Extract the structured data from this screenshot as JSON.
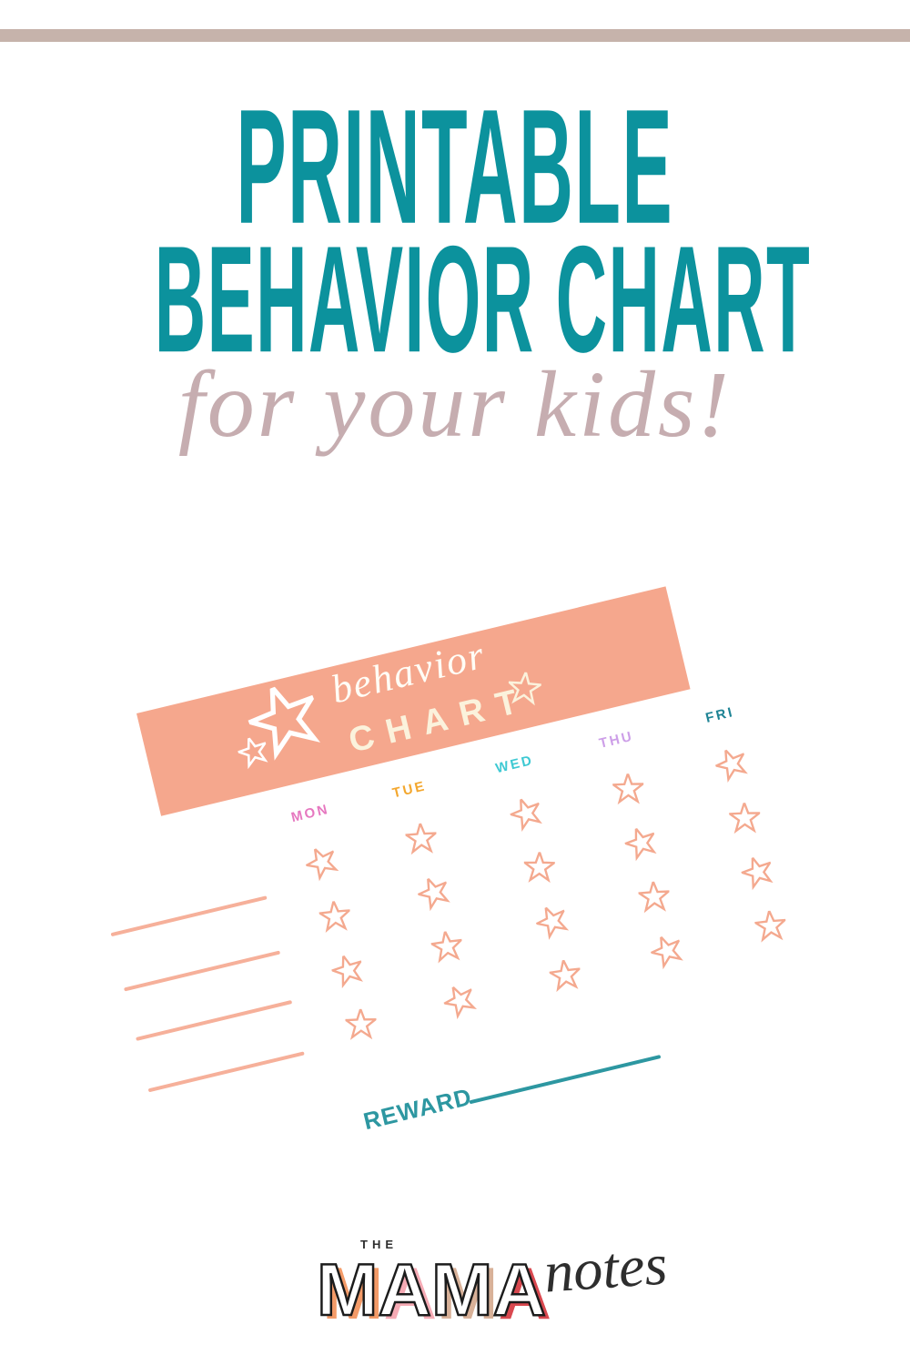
{
  "page": {
    "top_bar_color": "#c6b3ab",
    "background": "#ffffff"
  },
  "title": {
    "line1": "PRINTABLE",
    "line2": "BEHAVIOR CHART",
    "color": "#0c929d"
  },
  "subtitle": {
    "text": "for your kids!",
    "color": "#c6adb0"
  },
  "chart": {
    "header": {
      "bg_color": "#f5a78d",
      "script_text": "behavior",
      "title_text": "CHART",
      "script_color": "#fffdf6",
      "title_color": "#fbf2dc",
      "star_color": "#ffffff"
    },
    "days": [
      {
        "label": "MON",
        "color": "#e678c0"
      },
      {
        "label": "TUE",
        "color": "#f3a72e"
      },
      {
        "label": "WED",
        "color": "#3ec9d3"
      },
      {
        "label": "THU",
        "color": "#cd9fe8"
      },
      {
        "label": "FRI",
        "color": "#1f8495"
      }
    ],
    "stars_per_day": 4,
    "star_color": "#f4a98f",
    "writing_line_count": 4,
    "writing_line_color": "#f6b09a",
    "reward": {
      "label": "REWARD",
      "color": "#2d97a1"
    }
  },
  "logo": {
    "the_text": "THE",
    "mama_letters": [
      {
        "char": "M",
        "shadow_color": "#f49b68"
      },
      {
        "char": "A",
        "shadow_color": "#f6abb5"
      },
      {
        "char": "M",
        "shadow_color": "#d8b198"
      },
      {
        "char": "A",
        "shadow_color": "#d9484f"
      }
    ],
    "notes_text": "notes",
    "text_color": "#2e2e2e"
  }
}
